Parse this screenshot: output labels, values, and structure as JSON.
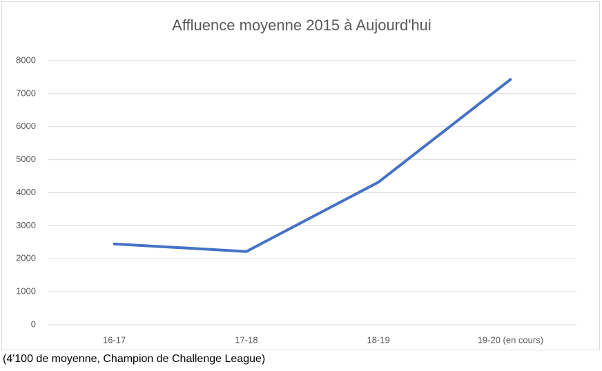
{
  "chart_data": {
    "type": "line",
    "title": "Affluence moyenne 2015 à Aujourd'hui",
    "categories": [
      "16-17",
      "17-18",
      "18-19",
      "19-20 (en cours)"
    ],
    "series": [
      {
        "name": "Affluence moyenne",
        "color": "#4472c4",
        "values": [
          2450,
          2220,
          4320,
          7430
        ]
      }
    ],
    "ylim": [
      0,
      8000
    ],
    "yticks": [
      0,
      1000,
      2000,
      3000,
      4000,
      5000,
      6000,
      7000,
      8000
    ],
    "grid": true
  },
  "caption": "(4'100 de moyenne, Champion de Challenge League)"
}
